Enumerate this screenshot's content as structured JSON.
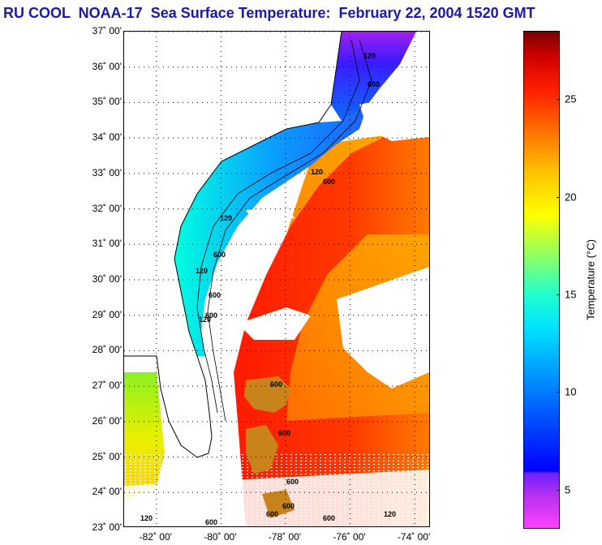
{
  "title": "RU COOL  NOAA-17  Sea Surface Temperature:  February 22, 2004 1520 GMT",
  "map": {
    "latitude_labels": [
      {
        "lat": 37,
        "label": "37˚ 00'"
      },
      {
        "lat": 36,
        "label": "36˚ 00'"
      },
      {
        "lat": 35,
        "label": "35˚ 00'"
      },
      {
        "lat": 34,
        "label": "34˚ 00'"
      },
      {
        "lat": 33,
        "label": "33˚ 00'"
      },
      {
        "lat": 32,
        "label": "32˚ 00'"
      },
      {
        "lat": 31,
        "label": "31˚ 00'"
      },
      {
        "lat": 30,
        "label": "30˚ 00'"
      },
      {
        "lat": 29,
        "label": "29˚ 00'"
      },
      {
        "lat": 28,
        "label": "28˚ 00'"
      },
      {
        "lat": 27,
        "label": "27˚ 00'"
      },
      {
        "lat": 26,
        "label": "26˚ 00'"
      },
      {
        "lat": 25,
        "label": "25˚ 00'"
      },
      {
        "lat": 24,
        "label": "24˚ 00'"
      },
      {
        "lat": 23,
        "label": "23˚ 00'"
      }
    ],
    "longitude_labels": [
      {
        "lon": -82,
        "label": "-82˚ 00'"
      },
      {
        "lon": -80,
        "label": "-80˚ 00'"
      },
      {
        "lon": -78,
        "label": "-78˚ 00'"
      },
      {
        "lon": -76,
        "label": "-76˚ 00'"
      },
      {
        "lon": -74,
        "label": "-74˚ 00'"
      }
    ],
    "lat_range": [
      23,
      37
    ],
    "lon_range": [
      -83,
      -73.5
    ],
    "isobath_labels": [
      "120",
      "600",
      "120",
      "600",
      "120",
      "600",
      "120",
      "600",
      "120",
      "600",
      "600",
      "600",
      "600",
      "600",
      "120",
      "600",
      "600",
      "120",
      "600"
    ],
    "colors": {
      "land": "#ffffff",
      "cloud": "#ffffff",
      "shelf_cold": "#1e90ff",
      "coast_cold": "#00e5ff",
      "gulf_stream": "#ff2a00",
      "offshore": "#ff8a00",
      "northern_shelf": "#3b4cff",
      "far_north": "#9b30ff",
      "gulf_mexico": "#e4f000"
    }
  },
  "colorbar": {
    "axis_label": "Temperature (°C)",
    "min": 3,
    "max": 28.5,
    "ticks": [
      {
        "value": 5,
        "label": "5"
      },
      {
        "value": 10,
        "label": "10"
      },
      {
        "value": 15,
        "label": "15"
      },
      {
        "value": 20,
        "label": "20"
      },
      {
        "value": 25,
        "label": "25"
      }
    ]
  }
}
